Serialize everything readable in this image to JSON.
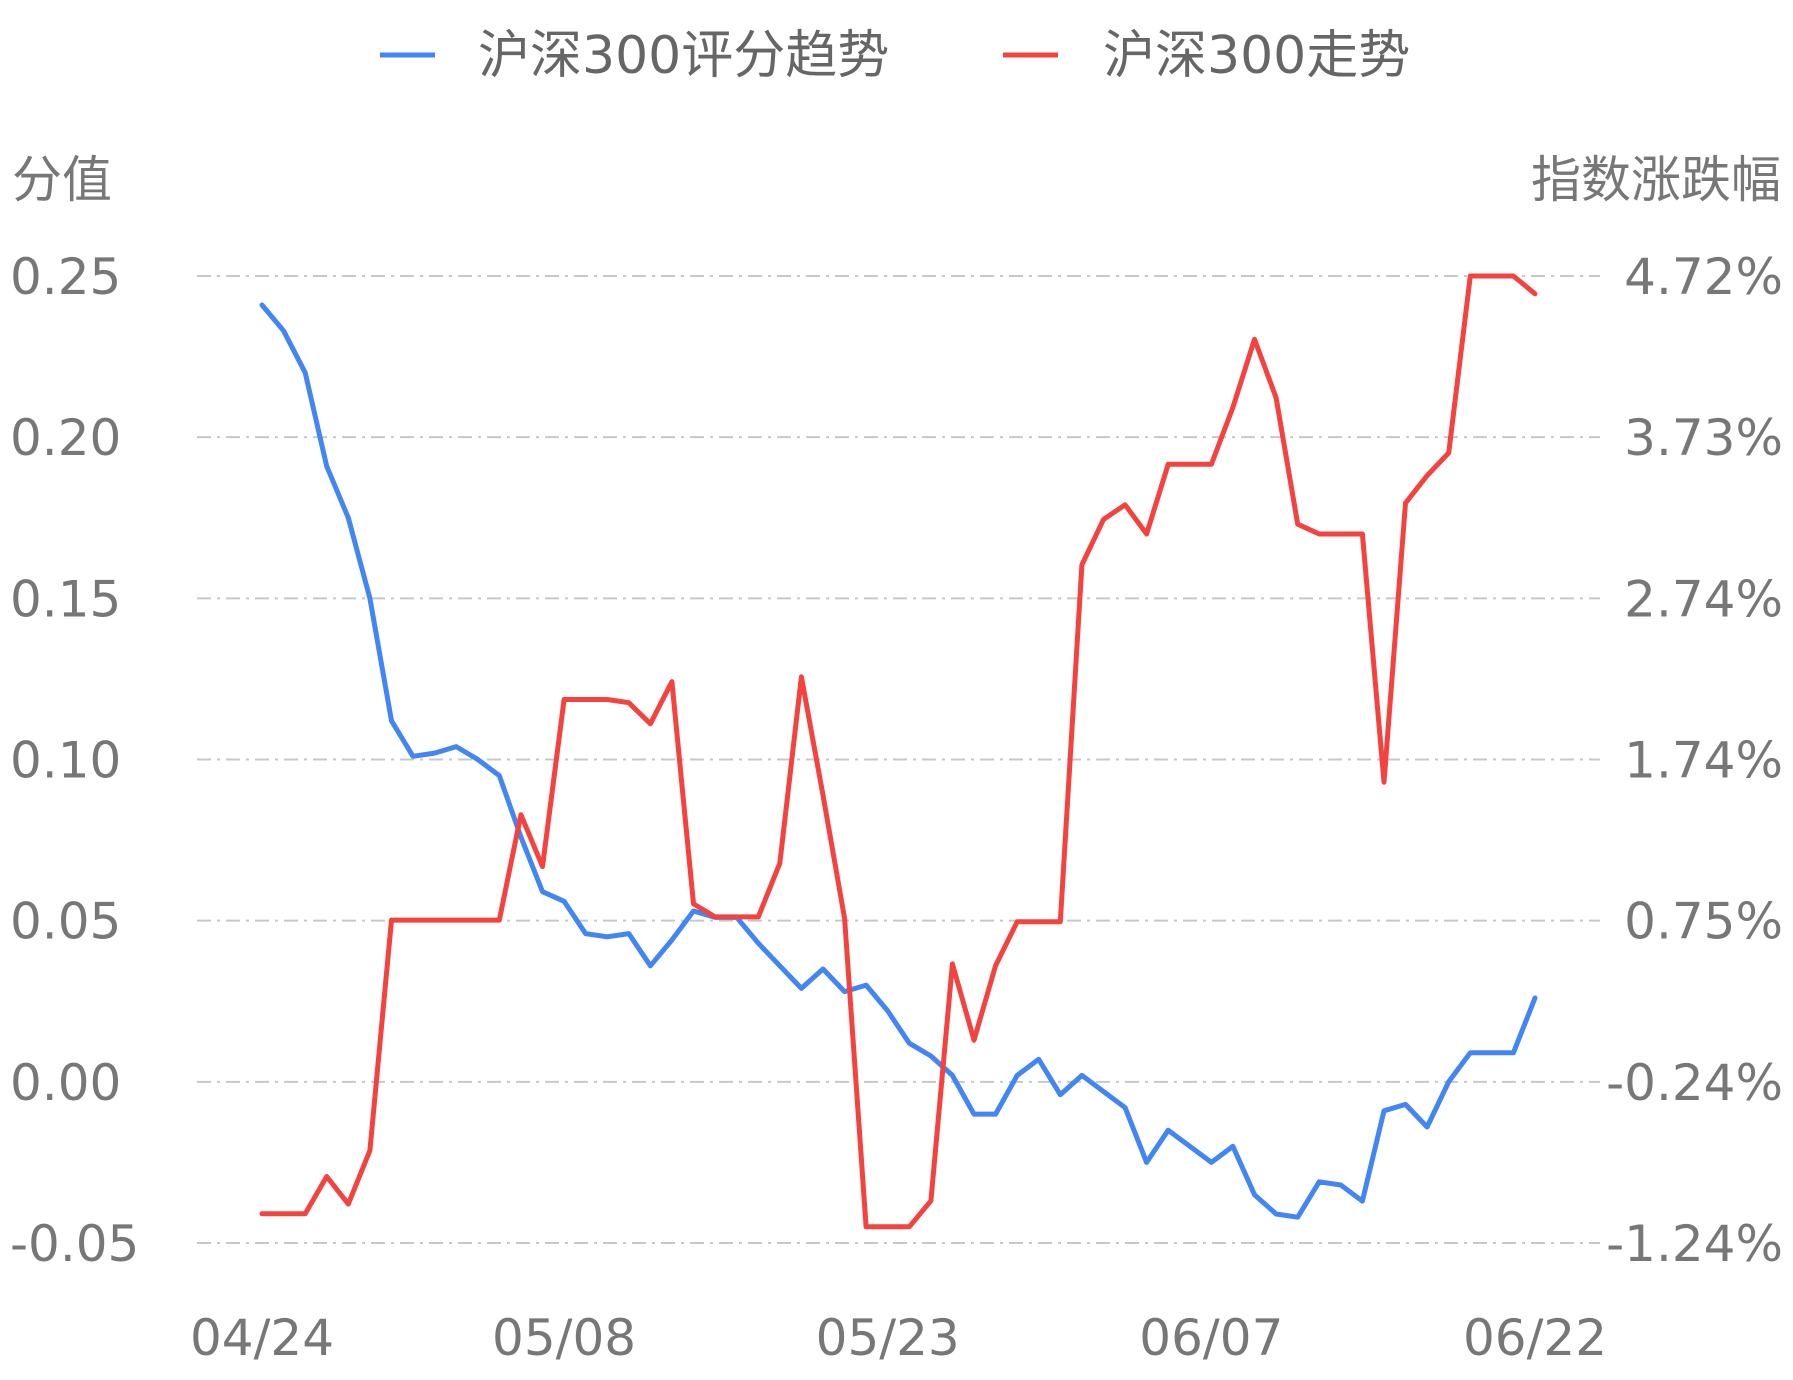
{
  "chart_data": {
    "type": "line",
    "title": "",
    "legend": {
      "position": "top",
      "entries": [
        {
          "name": "沪深300评分趋势",
          "color": "#4285f4"
        },
        {
          "name": "沪深300走势",
          "color": "#f4433f"
        }
      ]
    },
    "left_axis": {
      "title": "分值",
      "ticks": [
        "0.25",
        "0.20",
        "0.15",
        "0.10",
        "0.05",
        "0.00",
        "-0.05"
      ],
      "ylim": [
        -0.05,
        0.25
      ]
    },
    "right_axis": {
      "title": "指数涨跌幅",
      "ticks": [
        "4.72%",
        "3.73%",
        "2.74%",
        "1.74%",
        "0.75%",
        "-0.24%",
        "-1.24%"
      ],
      "ylim": [
        -1.24,
        4.72
      ]
    },
    "x_ticks": [
      "04/24",
      "05/08",
      "05/23",
      "06/07",
      "06/22"
    ],
    "x_tick_index": [
      0,
      14,
      29,
      44,
      59
    ],
    "grid": true,
    "series": [
      {
        "name": "沪深300评分趋势",
        "axis": "left",
        "color": "#4285f4",
        "values": [
          0.241,
          0.233,
          0.22,
          0.191,
          0.175,
          0.15,
          0.112,
          0.101,
          0.102,
          0.104,
          0.1,
          0.095,
          0.076,
          0.059,
          0.056,
          0.046,
          0.045,
          0.046,
          0.036,
          0.044,
          0.053,
          0.051,
          0.051,
          0.043,
          0.036,
          0.029,
          0.035,
          0.028,
          0.03,
          0.022,
          0.012,
          0.008,
          0.002,
          -0.01,
          -0.01,
          0.002,
          0.007,
          -0.004,
          0.002,
          -0.003,
          -0.008,
          -0.025,
          -0.015,
          -0.02,
          -0.025,
          -0.02,
          -0.035,
          -0.041,
          -0.042,
          -0.031,
          -0.032,
          -0.037,
          -0.009,
          -0.007,
          -0.014,
          0.0,
          0.009,
          0.009,
          0.009,
          0.026
        ]
      },
      {
        "name": "沪深300走势",
        "axis": "right",
        "color": "#f4433f",
        "values": [
          -1.06,
          -1.06,
          -1.06,
          -0.83,
          -1.0,
          -0.67,
          0.75,
          0.75,
          0.75,
          0.75,
          0.75,
          0.75,
          1.4,
          1.08,
          2.11,
          2.11,
          2.11,
          2.09,
          1.96,
          2.22,
          0.85,
          0.77,
          0.77,
          0.77,
          1.1,
          2.25,
          1.52,
          0.76,
          -1.14,
          -1.14,
          -1.14,
          -0.98,
          0.48,
          0.01,
          0.47,
          0.74,
          0.74,
          0.74,
          2.94,
          3.22,
          3.31,
          3.13,
          3.56,
          3.56,
          3.56,
          3.91,
          4.33,
          3.97,
          3.19,
          3.13,
          3.13,
          3.13,
          1.6,
          3.32,
          3.49,
          3.63,
          4.72,
          4.72,
          4.72,
          4.61
        ]
      }
    ]
  }
}
